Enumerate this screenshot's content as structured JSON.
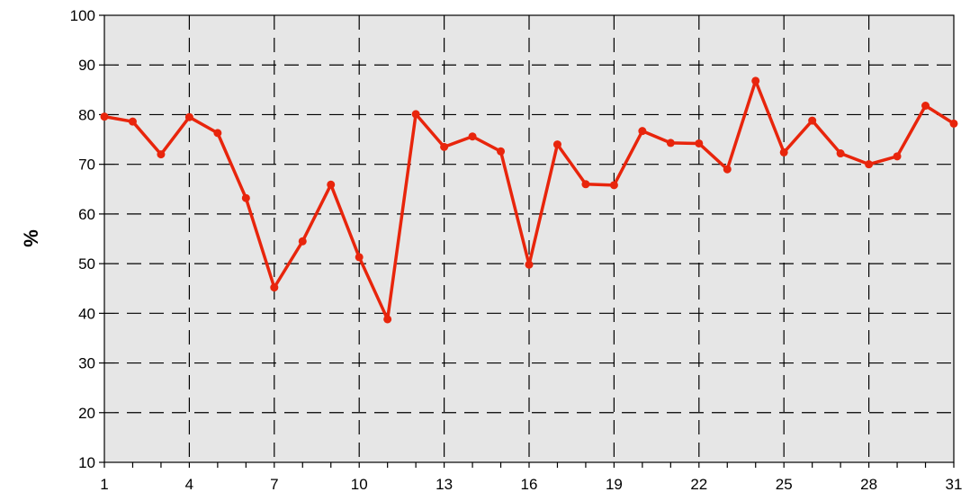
{
  "chart_data": {
    "type": "line",
    "title": "",
    "xlabel": "",
    "ylabel": "%",
    "xlim": [
      1,
      31
    ],
    "ylim": [
      10,
      100
    ],
    "x_ticks": [
      1,
      4,
      7,
      10,
      13,
      16,
      19,
      22,
      25,
      28,
      31
    ],
    "y_ticks": [
      10,
      20,
      30,
      40,
      50,
      60,
      70,
      80,
      90,
      100
    ],
    "grid": true,
    "legend": "none",
    "series": [
      {
        "color": "#e8250c",
        "x": [
          1,
          2,
          3,
          4,
          5,
          6,
          7,
          8,
          9,
          10,
          11,
          12,
          13,
          14,
          15,
          16,
          17,
          18,
          19,
          20,
          21,
          22,
          23,
          24,
          25,
          26,
          27,
          28,
          29,
          30,
          31
        ],
        "values": [
          79.6,
          78.6,
          72,
          79.5,
          76.3,
          63.2,
          45.2,
          54.5,
          65.9,
          51.3,
          38.8,
          80.1,
          73.5,
          75.6,
          72.6,
          49.8,
          74,
          66,
          65.8,
          76.7,
          74.3,
          74.2,
          69,
          86.8,
          72.4,
          78.8,
          72.2,
          70,
          71.6,
          81.8,
          78.2
        ]
      }
    ],
    "colors": {
      "plot_background": "#e6e6e6",
      "line": "#e8250c",
      "grid": "#000000"
    }
  }
}
